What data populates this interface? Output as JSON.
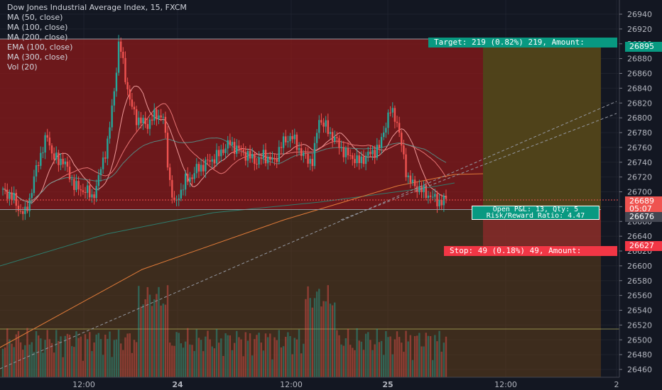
{
  "legend": {
    "title": "Dow Jones Industrial Average Index, 15, FXCM",
    "lines": [
      "MA (50, close)",
      "MA (100, close)",
      "MA (200, close)",
      "EMA (100, close)",
      "MA (300, close)",
      "Vol (20)"
    ]
  },
  "position": {
    "target_label": "Target: 219 (0.82%) 219, Amount:",
    "stop_label": "Stop: 49 (0.18%) 49, Amount:",
    "pnl_label": "Open P&L: 13, Qty: 5",
    "rr_label": "Risk/Reward Ratio: 4.47",
    "entry": 26676,
    "target": 26895,
    "stop": 26627
  },
  "price_tags": {
    "target": "26895",
    "last": "26689",
    "countdown": "05:07",
    "entry": "26676",
    "stop": "26627"
  },
  "colors": {
    "background": "#131722",
    "up": "#26a69a",
    "down": "#ef5350",
    "target_zone": "#8b1a1a",
    "stop_zone": "#5a3a1a",
    "tag_green": "#089981",
    "tag_red": "#f23645"
  },
  "chart_data": {
    "type": "candlestick",
    "interval": "15",
    "ylim": [
      26450,
      26960
    ],
    "y_ticks": [
      26460,
      26480,
      26500,
      26520,
      26540,
      26560,
      26580,
      26600,
      26620,
      26640,
      26660,
      26680,
      26700,
      26720,
      26740,
      26760,
      26780,
      26800,
      26820,
      26840,
      26860,
      26880,
      26900,
      26920,
      26940
    ],
    "x_ticks": [
      {
        "label": "12:00",
        "bold": false
      },
      {
        "label": "24",
        "bold": true
      },
      {
        "label": "12:00",
        "bold": false
      },
      {
        "label": "25",
        "bold": true
      },
      {
        "label": "12:00",
        "bold": false
      },
      {
        "label": "2",
        "bold": false
      }
    ],
    "close_path": [
      26700,
      26698,
      26690,
      26675,
      26670,
      26695,
      26730,
      26755,
      26775,
      26750,
      26740,
      26745,
      26720,
      26710,
      26700,
      26705,
      26690,
      26710,
      26740,
      26770,
      26830,
      26905,
      26860,
      26820,
      26800,
      26795,
      26790,
      26800,
      26805,
      26800,
      26720,
      26680,
      26700,
      26715,
      26720,
      26730,
      26735,
      26740,
      26745,
      26750,
      26760,
      26765,
      26760,
      26755,
      26750,
      26745,
      26740,
      26750,
      26745,
      26740,
      26760,
      26770,
      26775,
      26765,
      26750,
      26745,
      26740,
      26800,
      26790,
      26780,
      26770,
      26760,
      26750,
      26748,
      26740,
      26745,
      26750,
      26755,
      26760,
      26790,
      26810,
      26800,
      26760,
      26720,
      26710,
      26705,
      26700,
      26695,
      26690,
      26686,
      26689
    ]
  }
}
